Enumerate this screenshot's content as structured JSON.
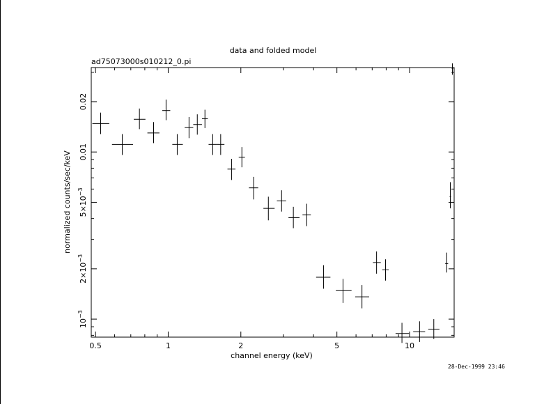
{
  "chart_data": {
    "type": "scatter",
    "title": "data and folded model",
    "subtitle": "ad75073000s010212_0.pi",
    "xlabel": "channel energy (keV)",
    "ylabel": "normalized counts/sec/keV",
    "timestamp": "28-Dec-1999 23:46",
    "xscale": "log",
    "yscale": "log",
    "xlim": [
      0.48,
      15.3
    ],
    "ylim": [
      0.00078,
      0.032
    ],
    "xticks": [
      {
        "value": 0.5,
        "label": "0.5"
      },
      {
        "value": 1,
        "label": "1"
      },
      {
        "value": 2,
        "label": "2"
      },
      {
        "value": 5,
        "label": "5"
      },
      {
        "value": 10,
        "label": "10"
      }
    ],
    "yticks": [
      {
        "value": 0.001,
        "label": "10⁻³",
        "base": "10",
        "exp": "−3"
      },
      {
        "value": 0.002,
        "label": "2×10⁻³",
        "base": "2×10",
        "exp": "−3"
      },
      {
        "value": 0.005,
        "label": "5×10⁻³",
        "base": "5×10",
        "exp": "−3"
      },
      {
        "value": 0.01,
        "label": "0.01"
      },
      {
        "value": 0.02,
        "label": "0.02"
      }
    ],
    "series": [
      {
        "points": [
          {
            "x": 0.525,
            "xlo": 0.485,
            "xhi": 0.57,
            "y": 0.0148,
            "ylo": 0.0128,
            "yhi": 0.0172
          },
          {
            "x": 0.645,
            "xlo": 0.585,
            "xhi": 0.715,
            "y": 0.0111,
            "ylo": 0.0096,
            "yhi": 0.0128
          },
          {
            "x": 0.76,
            "xlo": 0.72,
            "xhi": 0.805,
            "y": 0.0157,
            "ylo": 0.0137,
            "yhi": 0.0182
          },
          {
            "x": 0.87,
            "xlo": 0.82,
            "xhi": 0.92,
            "y": 0.013,
            "ylo": 0.0113,
            "yhi": 0.0151
          },
          {
            "x": 0.98,
            "xlo": 0.945,
            "xhi": 1.02,
            "y": 0.0177,
            "ylo": 0.0155,
            "yhi": 0.0206
          },
          {
            "x": 1.09,
            "xlo": 1.04,
            "xhi": 1.15,
            "y": 0.0111,
            "ylo": 0.0096,
            "yhi": 0.0128
          },
          {
            "x": 1.22,
            "xlo": 1.17,
            "xhi": 1.27,
            "y": 0.014,
            "ylo": 0.0121,
            "yhi": 0.0162
          },
          {
            "x": 1.32,
            "xlo": 1.27,
            "xhi": 1.38,
            "y": 0.0146,
            "ylo": 0.0127,
            "yhi": 0.0168
          },
          {
            "x": 1.42,
            "xlo": 1.38,
            "xhi": 1.46,
            "y": 0.0158,
            "ylo": 0.0139,
            "yhi": 0.0179
          },
          {
            "x": 1.53,
            "xlo": 1.47,
            "xhi": 1.59,
            "y": 0.0111,
            "ylo": 0.0096,
            "yhi": 0.0128
          },
          {
            "x": 1.65,
            "xlo": 1.59,
            "xhi": 1.71,
            "y": 0.0111,
            "ylo": 0.0096,
            "yhi": 0.0128
          },
          {
            "x": 1.83,
            "xlo": 1.76,
            "xhi": 1.9,
            "y": 0.0079,
            "ylo": 0.0068,
            "yhi": 0.0091
          },
          {
            "x": 2.02,
            "xlo": 1.96,
            "xhi": 2.08,
            "y": 0.0093,
            "ylo": 0.0081,
            "yhi": 0.0107
          },
          {
            "x": 2.26,
            "xlo": 2.16,
            "xhi": 2.36,
            "y": 0.0061,
            "ylo": 0.0052,
            "yhi": 0.0071
          },
          {
            "x": 2.6,
            "xlo": 2.48,
            "xhi": 2.76,
            "y": 0.0046,
            "ylo": 0.0039,
            "yhi": 0.0054
          },
          {
            "x": 2.95,
            "xlo": 2.82,
            "xhi": 3.08,
            "y": 0.0051,
            "ylo": 0.0044,
            "yhi": 0.0059
          },
          {
            "x": 3.3,
            "xlo": 3.15,
            "xhi": 3.5,
            "y": 0.00405,
            "ylo": 0.0035,
            "yhi": 0.0047
          },
          {
            "x": 3.75,
            "xlo": 3.6,
            "xhi": 3.9,
            "y": 0.0042,
            "ylo": 0.0036,
            "yhi": 0.0049
          },
          {
            "x": 4.4,
            "xlo": 4.1,
            "xhi": 4.7,
            "y": 0.00178,
            "ylo": 0.00152,
            "yhi": 0.0021
          },
          {
            "x": 5.3,
            "xlo": 4.95,
            "xhi": 5.75,
            "y": 0.00148,
            "ylo": 0.00125,
            "yhi": 0.00174
          },
          {
            "x": 6.35,
            "xlo": 5.95,
            "xhi": 6.8,
            "y": 0.00136,
            "ylo": 0.00116,
            "yhi": 0.0016
          },
          {
            "x": 7.3,
            "xlo": 7.05,
            "xhi": 7.6,
            "y": 0.00218,
            "ylo": 0.00187,
            "yhi": 0.00254
          },
          {
            "x": 7.95,
            "xlo": 7.7,
            "xhi": 8.2,
            "y": 0.00197,
            "ylo": 0.0017,
            "yhi": 0.00228
          },
          {
            "x": 9.3,
            "xlo": 8.75,
            "xhi": 9.95,
            "y": 0.00082,
            "ylo": 0.00072,
            "yhi": 0.00095
          },
          {
            "x": 11.0,
            "xlo": 10.35,
            "xhi": 11.6,
            "y": 0.00084,
            "ylo": 0.00073,
            "yhi": 0.00097
          },
          {
            "x": 12.6,
            "xlo": 11.95,
            "xhi": 13.3,
            "y": 0.00087,
            "ylo": 0.00076,
            "yhi": 0.001
          },
          {
            "x": 14.25,
            "xlo": 14.05,
            "xhi": 14.45,
            "y": 0.00215,
            "ylo": 0.0019,
            "yhi": 0.0025
          },
          {
            "x": 14.75,
            "xlo": 14.65,
            "xhi": 14.85,
            "y": 0.0054,
            "ylo": 0.0046,
            "yhi": 0.0066
          },
          {
            "x": 15.05,
            "xlo": 14.95,
            "xhi": 15.15,
            "y": 0.0315,
            "ylo": 0.029,
            "yhi": 0.034
          }
        ]
      }
    ]
  }
}
